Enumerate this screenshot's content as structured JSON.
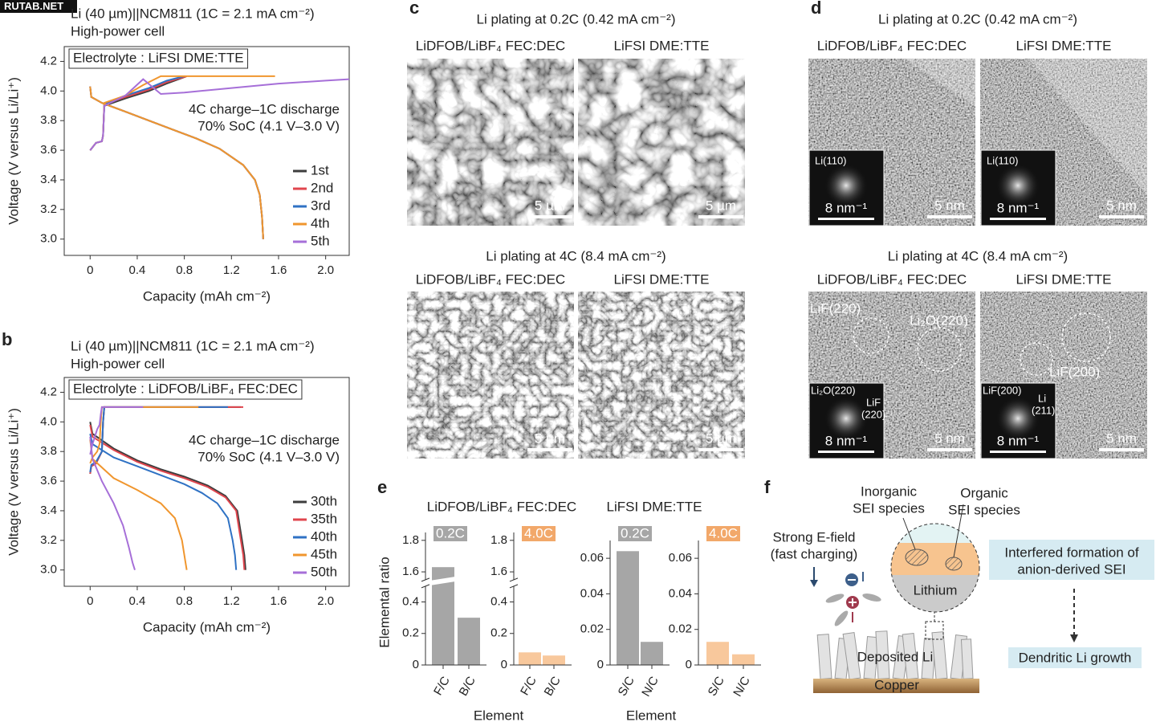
{
  "watermark": "RUTAB.NET",
  "chart_data": [
    {
      "type": "line",
      "title": "Li (40 µm)||NCM811 (1C = 2.1 mA cm⁻²)",
      "subtitle": "High-power cell",
      "box_label": "Electrolyte : LiFSI DME:TTE",
      "annotations": [
        "4C charge–1C discharge",
        "70% SoC (4.1 V–3.0 V)"
      ],
      "xlabel": "Capacity (mAh cm⁻²)",
      "ylabel": "Voltage (V versus Li/Li⁺)",
      "xlim": [
        -0.22,
        2.2
      ],
      "xticks": [
        0,
        0.4,
        0.8,
        1.2,
        1.6,
        {
          "value": 2,
          "label": "2.0"
        }
      ],
      "ylim": [
        2.89,
        4.3
      ],
      "yticks": [
        {
          "value": 3,
          "label": "3.0"
        },
        3.2,
        3.4,
        3.6,
        3.8,
        {
          "value": 4,
          "label": "4.0"
        },
        4.2
      ],
      "legend": "lower right",
      "series": [
        {
          "name": "1st",
          "color": "#3d3d3d",
          "x": [
            0,
            0.05,
            0.1,
            0.11,
            0.12,
            0.3,
            0.5,
            0.65,
            0.82,
            null,
            0,
            0.01,
            0.1,
            0.3,
            0.5,
            0.7,
            0.9,
            1.1,
            1.3,
            1.4,
            1.44,
            1.46,
            1.47
          ],
          "values": [
            3.6,
            3.65,
            3.66,
            3.7,
            3.9,
            3.95,
            4.0,
            4.05,
            4.1,
            null,
            4.03,
            3.96,
            3.92,
            3.86,
            3.8,
            3.74,
            3.68,
            3.61,
            3.5,
            3.4,
            3.3,
            3.15,
            3.0
          ]
        },
        {
          "name": "2nd",
          "color": "#e0464e",
          "x": [
            0,
            0.05,
            0.1,
            0.11,
            0.12,
            0.3,
            0.5,
            0.65,
            0.82,
            null,
            0,
            0.01,
            0.1,
            0.3,
            0.5,
            0.7,
            0.9,
            1.1,
            1.3,
            1.4,
            1.44,
            1.46,
            1.47
          ],
          "values": [
            3.6,
            3.65,
            3.66,
            3.7,
            3.91,
            3.96,
            4.01,
            4.06,
            4.1,
            null,
            4.03,
            3.96,
            3.92,
            3.86,
            3.8,
            3.74,
            3.68,
            3.61,
            3.5,
            3.4,
            3.3,
            3.15,
            3.0
          ]
        },
        {
          "name": "3rd",
          "color": "#2f72c4",
          "x": [
            0,
            0.05,
            0.1,
            0.11,
            0.12,
            0.3,
            0.5,
            0.65,
            0.8,
            null,
            0,
            0.01,
            0.1,
            0.3,
            0.5,
            0.7,
            0.9,
            1.1,
            1.3,
            1.4,
            1.44,
            1.46,
            1.47
          ],
          "values": [
            3.6,
            3.65,
            3.66,
            3.7,
            3.91,
            3.97,
            4.02,
            4.07,
            4.1,
            null,
            4.03,
            3.96,
            3.92,
            3.86,
            3.8,
            3.74,
            3.68,
            3.61,
            3.5,
            3.4,
            3.3,
            3.15,
            3.0
          ]
        },
        {
          "name": "4th",
          "color": "#f0962e",
          "x": [
            0,
            0.05,
            0.1,
            0.11,
            0.12,
            0.3,
            0.45,
            0.6,
            1.0,
            1.57,
            null,
            0,
            0.01,
            0.1,
            0.3,
            0.5,
            0.7,
            0.9,
            1.1,
            1.3,
            1.4,
            1.44,
            1.46,
            1.47
          ],
          "values": [
            3.6,
            3.65,
            3.66,
            3.7,
            3.92,
            3.97,
            4.04,
            4.1,
            4.1,
            4.1,
            null,
            4.03,
            3.96,
            3.92,
            3.86,
            3.8,
            3.74,
            3.68,
            3.61,
            3.5,
            3.4,
            3.3,
            3.15,
            3.0
          ]
        },
        {
          "name": "5th",
          "color": "#a66fd8",
          "x": [
            0,
            0.05,
            0.1,
            0.11,
            0.12,
            0.3,
            0.45,
            0.6,
            0.8,
            1.2,
            1.6,
            2.0,
            2.2
          ],
          "values": [
            3.6,
            3.65,
            3.66,
            3.7,
            3.9,
            3.97,
            4.08,
            3.98,
            3.99,
            4.02,
            4.05,
            4.07,
            4.08
          ]
        }
      ]
    },
    {
      "type": "line",
      "panel": "b",
      "title": "Li (40 µm)||NCM811 (1C = 2.1 mA cm⁻²)",
      "subtitle": "High-power cell",
      "box_label": "Electrolyte : LiDFOB/LiBF₄ FEC:DEC",
      "annotations": [
        "4C charge–1C discharge",
        "70% SoC (4.1 V–3.0 V)"
      ],
      "xlabel": "Capacity (mAh cm⁻²)",
      "ylabel": "Voltage (V versus Li/Li⁺)",
      "xlim": [
        -0.22,
        2.2
      ],
      "xticks": [
        0,
        0.4,
        0.8,
        1.2,
        1.6,
        {
          "value": 2,
          "label": "2.0"
        }
      ],
      "ylim": [
        2.89,
        4.3
      ],
      "yticks": [
        {
          "value": 3,
          "label": "3.0"
        },
        3.2,
        3.4,
        3.6,
        3.8,
        {
          "value": 4,
          "label": "4.0"
        },
        4.2
      ],
      "legend": "lower right",
      "series": [
        {
          "name": "30th",
          "color": "#3d3d3d",
          "x": [
            0,
            0.01,
            0.05,
            0.1,
            0.11,
            0.12,
            1.28,
            null,
            0,
            0.02,
            0.2,
            0.4,
            0.6,
            0.8,
            1.0,
            1.15,
            1.25,
            1.29,
            1.31,
            1.32
          ],
          "values": [
            3.65,
            3.7,
            3.72,
            3.8,
            4.0,
            4.1,
            4.1,
            null,
            4.0,
            3.92,
            3.82,
            3.74,
            3.68,
            3.63,
            3.57,
            3.5,
            3.4,
            3.2,
            3.1,
            3.0
          ]
        },
        {
          "name": "35th",
          "color": "#e0464e",
          "x": [
            0,
            0.01,
            0.05,
            0.1,
            0.11,
            0.12,
            1.3,
            null,
            0,
            0.02,
            0.2,
            0.4,
            0.6,
            0.8,
            1.0,
            1.15,
            1.24,
            1.28,
            1.3,
            1.31
          ],
          "values": [
            3.65,
            3.7,
            3.72,
            3.8,
            4.0,
            4.1,
            4.1,
            null,
            3.98,
            3.9,
            3.81,
            3.73,
            3.67,
            3.62,
            3.56,
            3.49,
            3.4,
            3.2,
            3.1,
            3.0
          ]
        },
        {
          "name": "40th",
          "color": "#2f72c4",
          "x": [
            0,
            0.01,
            0.05,
            0.1,
            0.11,
            0.12,
            1.17,
            null,
            0,
            0.02,
            0.2,
            0.4,
            0.6,
            0.8,
            0.95,
            1.08,
            1.17,
            1.21,
            1.23,
            1.24
          ],
          "values": [
            3.66,
            3.71,
            3.73,
            3.8,
            4.0,
            4.1,
            4.1,
            null,
            3.92,
            3.85,
            3.76,
            3.7,
            3.64,
            3.58,
            3.52,
            3.45,
            3.35,
            3.2,
            3.1,
            3.0
          ]
        },
        {
          "name": "45th",
          "color": "#f0962e",
          "x": [
            0,
            0.02,
            0.06,
            0.08,
            0.09,
            0.1,
            0.92,
            null,
            0,
            0.02,
            0.2,
            0.4,
            0.6,
            0.72,
            0.78,
            0.81,
            0.82
          ],
          "values": [
            3.72,
            3.76,
            3.8,
            3.85,
            4.0,
            4.1,
            4.1,
            null,
            3.88,
            3.75,
            3.62,
            3.54,
            3.45,
            3.35,
            3.2,
            3.05,
            3.0
          ]
        },
        {
          "name": "50th",
          "color": "#a66fd8",
          "x": [
            0,
            0.02,
            0.06,
            0.08,
            0.09,
            0.1,
            0.45,
            null,
            0,
            0.02,
            0.1,
            0.2,
            0.28,
            0.33,
            0.36,
            0.38
          ],
          "values": [
            3.78,
            3.85,
            3.95,
            3.98,
            4.05,
            4.1,
            4.1,
            null,
            3.9,
            3.75,
            3.6,
            3.45,
            3.3,
            3.15,
            3.05,
            3.0
          ]
        }
      ]
    },
    {
      "type": "bar",
      "panel": "e",
      "title": "LiDFOB/LiBF₄ FEC:DEC",
      "ylabel": "Elemental ratio",
      "xlabel": "Element",
      "badge": "0.2C",
      "badge_color": "#a6a6a6",
      "color": "#a6a6a6",
      "categories": [
        "F/C",
        "B/C"
      ],
      "values": [
        1.63,
        0.3
      ],
      "ylim": [
        0,
        1.85
      ],
      "axis_break": [
        0.5,
        1.55
      ],
      "yticks": [
        0,
        0.2,
        0.4,
        1.6,
        1.8
      ]
    },
    {
      "type": "bar",
      "badge": "4.0C",
      "badge_color": "#f2a86a",
      "color": "#f8c89c",
      "categories": [
        "F/C",
        "B/C"
      ],
      "values": [
        0.08,
        0.06
      ],
      "ylim": [
        0,
        1.85
      ],
      "axis_break": [
        0.5,
        1.55
      ],
      "yticks": [
        0,
        0.2,
        0.4,
        1.6,
        1.8
      ]
    },
    {
      "type": "bar",
      "title": "LiFSI DME:TTE",
      "xlabel": "Element",
      "badge": "0.2C",
      "badge_color": "#a6a6a6",
      "color": "#a6a6a6",
      "categories": [
        "S/C",
        "N/C"
      ],
      "values": [
        0.064,
        0.013
      ],
      "ylim": [
        0,
        0.07
      ],
      "yticks": [
        0,
        0.02,
        0.04,
        0.06
      ]
    },
    {
      "type": "bar",
      "badge": "4.0C",
      "badge_color": "#f2a86a",
      "color": "#f8c89c",
      "categories": [
        "S/C",
        "N/C"
      ],
      "values": [
        0.013,
        0.006
      ],
      "ylim": [
        0,
        0.07
      ],
      "yticks": [
        0,
        0.02,
        0.04,
        0.06
      ]
    }
  ],
  "micrographs": [
    {
      "panel": "c",
      "rows": [
        {
          "title": "Li plating at 0.2C (0.42 mA cm⁻²)",
          "columns": [
            "LiDFOB/LiBF₄ FEC:DEC",
            "LiFSI DME:TTE"
          ],
          "tiles": [
            {
              "scale": "5 µm"
            },
            {
              "scale": "5 µm"
            }
          ]
        },
        {
          "title": "Li plating at 4C (8.4 mA cm⁻²)",
          "columns": [
            "LiDFOB/LiBF₄ FEC:DEC",
            "LiFSI DME:TTE"
          ],
          "tiles": [
            {
              "scale": "5 µm"
            },
            {
              "scale": "5 µm"
            }
          ]
        }
      ]
    },
    {
      "panel": "d",
      "rows": [
        {
          "title": "Li plating at 0.2C (0.42 mA cm⁻²)",
          "columns": [
            "LiDFOB/LiBF₄ FEC:DEC",
            "LiFSI DME:TTE"
          ],
          "tiles": [
            {
              "scale": "5 nm",
              "inset": {
                "labels": [
                  "Li(110)"
                ],
                "scale": "8 nm⁻¹"
              }
            },
            {
              "scale": "5 nm",
              "inset": {
                "labels": [
                  "Li(110)"
                ],
                "scale": "8 nm⁻¹"
              }
            }
          ]
        },
        {
          "title": "Li plating at 4C (8.4 mA cm⁻²)",
          "columns": [
            "LiDFOB/LiBF₄ FEC:DEC",
            "LiFSI DME:TTE"
          ],
          "tiles": [
            {
              "scale": "5 nm",
              "circles": [
                "LiF(220)",
                "Li₂O(220)"
              ],
              "inset": {
                "labels": [
                  "Li₂O(220)",
                  "LiF",
                  "(220)"
                ],
                "scale": "8 nm⁻¹"
              }
            },
            {
              "scale": "5 nm",
              "circles": [
                "LiF(200)"
              ],
              "inset": {
                "labels": [
                  "LiF(200)",
                  "Li",
                  "(211)"
                ],
                "scale": "8 nm⁻¹"
              }
            }
          ]
        }
      ]
    }
  ],
  "diagram": {
    "panel": "f",
    "field_label": [
      "Strong E-field",
      "(fast charging)"
    ],
    "inorganic": [
      "Inorganic",
      "SEI species"
    ],
    "organic": [
      "Organic",
      "SEI species"
    ],
    "lithium": "Lithium",
    "box1": [
      "Interfered formation of",
      "anion-derived SEI"
    ],
    "box2": "Dendritic Li growth",
    "deposited": "Deposited Li",
    "copper": "Copper"
  }
}
